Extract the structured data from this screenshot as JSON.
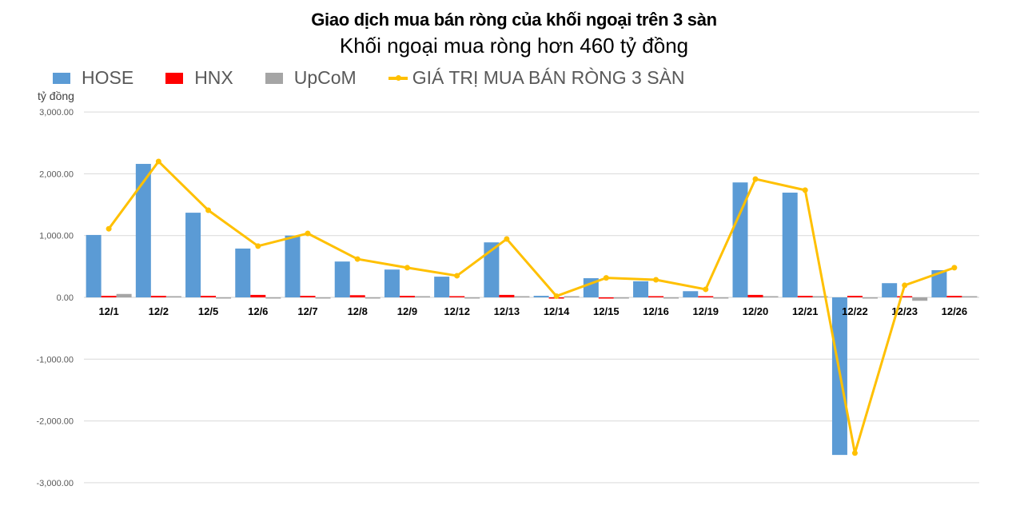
{
  "title": "Giao dịch mua bán ròng của khối ngoại trên 3 sàn",
  "subtitle": "Khối ngoại mua ròng hơn 460 tỷ đồng",
  "unit_label": "tỷ đồng",
  "legend": [
    {
      "name": "HOSE",
      "color": "#5b9bd5",
      "kind": "bar"
    },
    {
      "name": "HNX",
      "color": "#ff0000",
      "kind": "bar"
    },
    {
      "name": "UpCoM",
      "color": "#a5a5a5",
      "kind": "bar"
    },
    {
      "name": "GIÁ TRỊ MUA BÁN RÒNG 3 SÀN",
      "color": "#ffc000",
      "kind": "line"
    }
  ],
  "chart_data": {
    "type": "bar",
    "title": "Giao dịch mua bán ròng của khối ngoại trên 3 sàn",
    "subtitle": "Khối ngoại mua ròng hơn 460 tỷ đồng",
    "xlabel": "",
    "ylabel": "tỷ đồng",
    "ylim": [
      -3000,
      3000
    ],
    "yticks": [
      3000,
      2000,
      1000,
      0,
      -1000,
      -2000,
      -3000
    ],
    "ytick_labels": [
      "3,000.00",
      "2,000.00",
      "1,000.00",
      "0.00",
      "-1,000.00",
      "-2,000.00",
      "-3,000.00"
    ],
    "grid": true,
    "legend_position": "top",
    "categories": [
      "12/1",
      "12/2",
      "12/5",
      "12/6",
      "12/7",
      "12/8",
      "12/9",
      "12/12",
      "12/13",
      "12/14",
      "12/15",
      "12/16",
      "12/19",
      "12/20",
      "12/21",
      "12/22",
      "12/23",
      "12/26"
    ],
    "series": [
      {
        "name": "HOSE",
        "type": "bar",
        "color": "#5b9bd5",
        "values": [
          1010,
          2160,
          1370,
          790,
          1000,
          580,
          450,
          335,
          890,
          25,
          310,
          260,
          100,
          1860,
          1695,
          -2550,
          230,
          440
        ]
      },
      {
        "name": "HNX",
        "type": "bar",
        "color": "#ff0000",
        "values": [
          25,
          25,
          25,
          40,
          25,
          35,
          25,
          15,
          40,
          -10,
          -10,
          15,
          10,
          40,
          25,
          25,
          10,
          25
        ]
      },
      {
        "name": "UpCoM",
        "type": "bar",
        "color": "#a5a5a5",
        "values": [
          55,
          10,
          -5,
          -5,
          -5,
          -5,
          5,
          -5,
          5,
          5,
          -5,
          -5,
          -5,
          5,
          5,
          -5,
          -55,
          5
        ]
      },
      {
        "name": "GIÁ TRỊ MUA BÁN RÒNG 3 SÀN",
        "type": "line",
        "color": "#ffc000",
        "values": [
          1110,
          2200,
          1410,
          830,
          1035,
          620,
          480,
          350,
          945,
          20,
          315,
          285,
          130,
          1915,
          1735,
          -2520,
          195,
          480
        ]
      }
    ]
  }
}
